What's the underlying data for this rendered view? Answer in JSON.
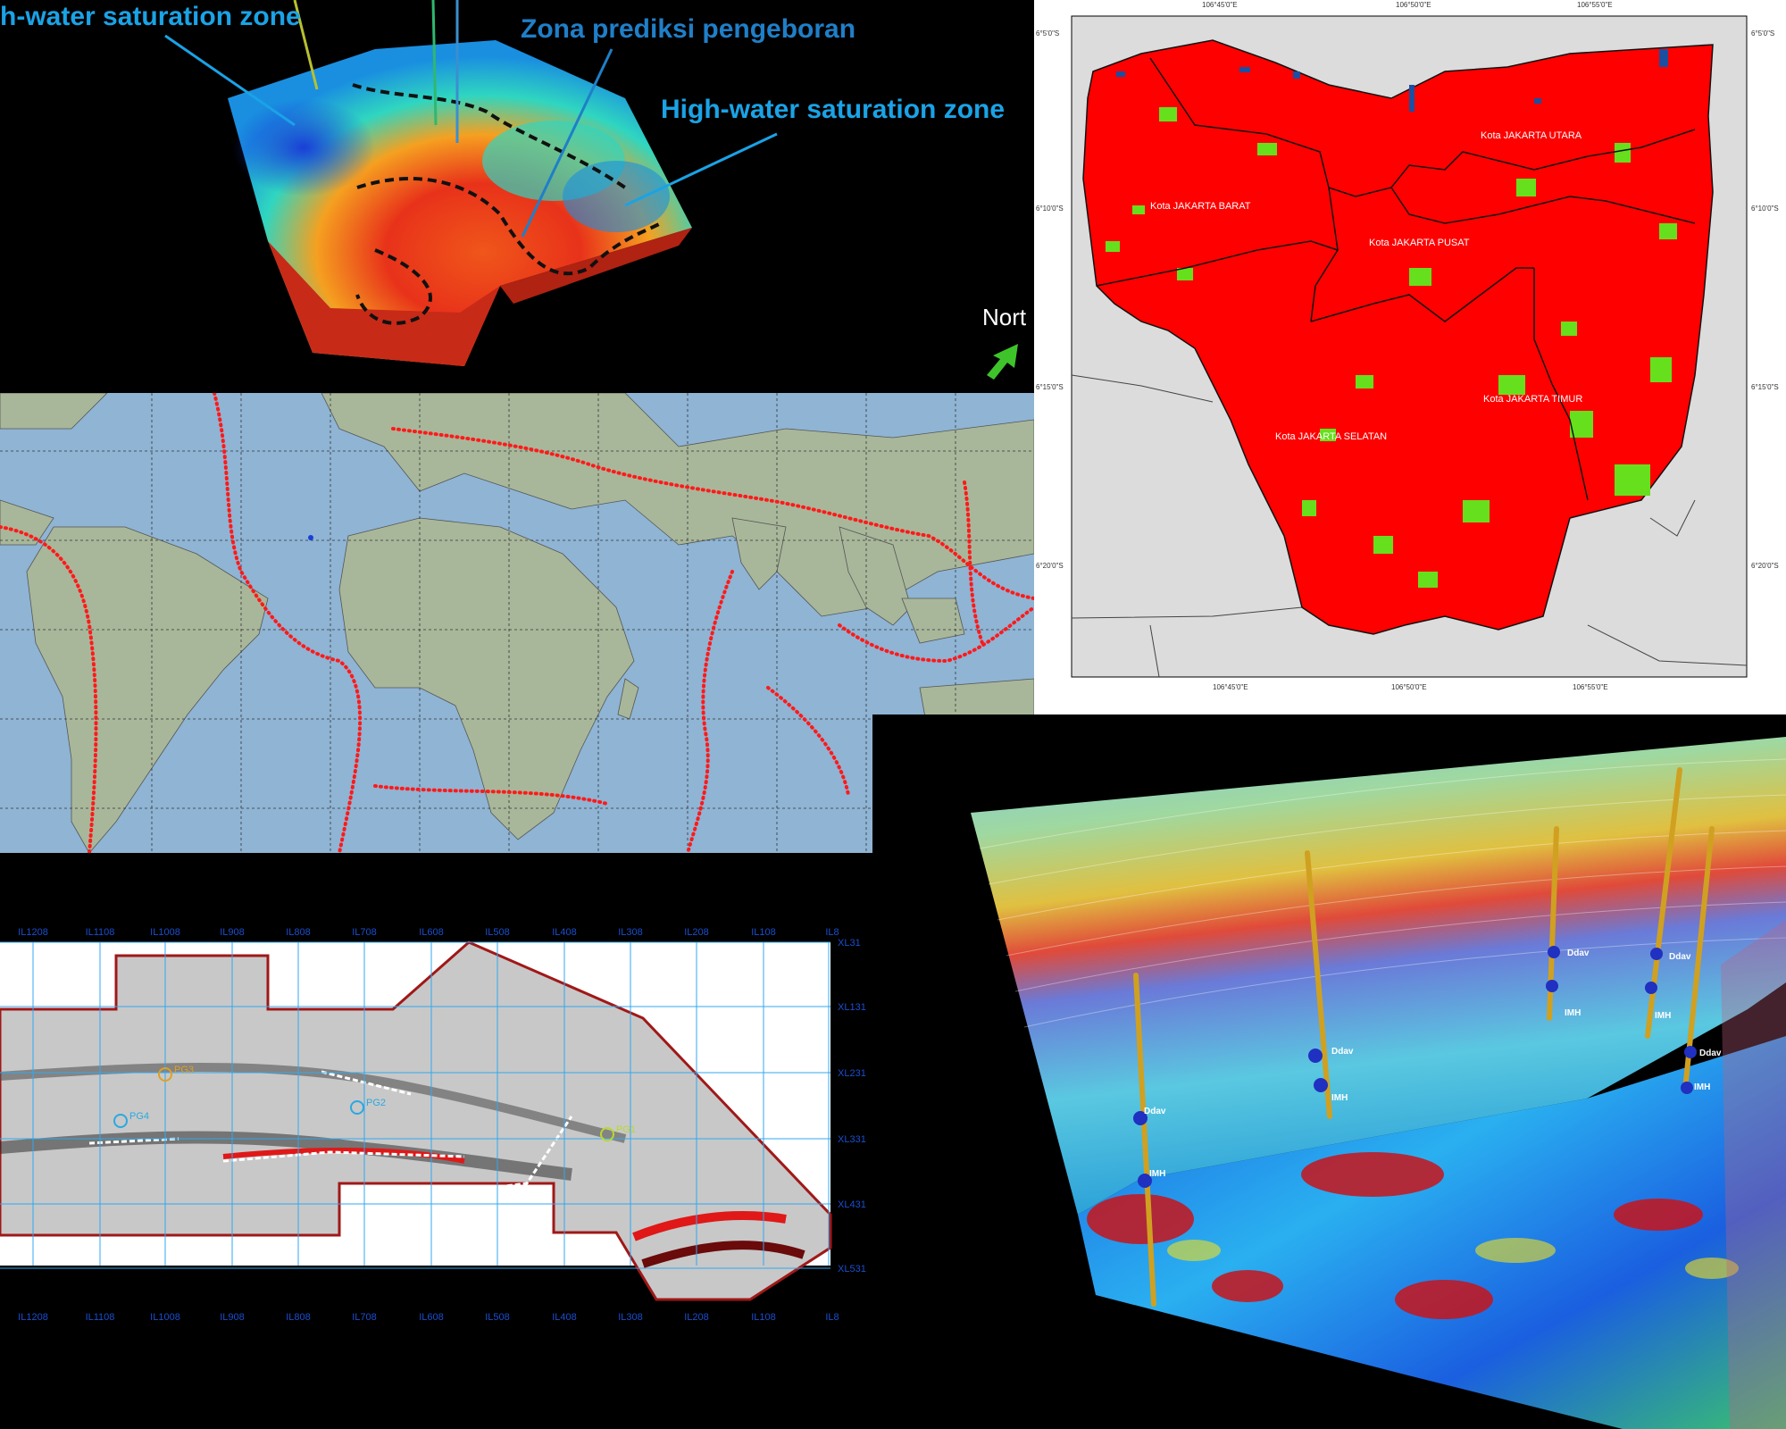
{
  "reservoir_panel": {
    "label_saturation_left": "h-water saturation zone",
    "label_drilling": "Zona prediksi pengeboran",
    "label_saturation_right": "High-water saturation zone",
    "north_label": "Nort",
    "colors": {
      "high_sat": "#1a3fd8",
      "mid": "#2fd6c0",
      "low": "#e8321a"
    }
  },
  "jakarta_map": {
    "top_coords": [
      "106°45'0\"E",
      "106°50'0\"E",
      "106°55'0\"E"
    ],
    "bottom_coords": [
      "106°45'0\"E",
      "106°50'0\"E",
      "106°55'0\"E"
    ],
    "left_coords": [
      "6°5'0\"S",
      "6°10'0\"S",
      "6°15'0\"S",
      "6°20'0\"S"
    ],
    "right_coords": [
      "6°5'0\"S",
      "6°10'0\"S",
      "6°15'0\"S",
      "6°20'0\"S"
    ],
    "districts": [
      "Kota JAKARTA UTARA",
      "Kota JAKARTA BARAT",
      "Kota JAKARTA PUSAT",
      "Kota JAKARTA TIMUR",
      "Kota JAKARTA SELATAN"
    ],
    "colors": {
      "built": "#ff0000",
      "vegetation": "#66e01c",
      "water": "#1c4fa0",
      "outside": "#dcdcdc"
    }
  },
  "world_map": {
    "colors": {
      "ocean": "#8fb4d4",
      "land": "#a8b79a",
      "quake": "#ff1a1a"
    }
  },
  "seismic_map": {
    "top_il": [
      "IL1208",
      "IL1108",
      "IL1008",
      "IL908",
      "IL808",
      "IL708",
      "IL608",
      "IL508",
      "IL408",
      "IL308",
      "IL208",
      "IL108",
      "IL8"
    ],
    "bottom_il": [
      "IL1208",
      "IL1108",
      "IL1008",
      "IL908",
      "IL808",
      "IL708",
      "IL608",
      "IL508",
      "IL408",
      "IL308",
      "IL208",
      "IL108",
      "IL8"
    ],
    "xl": [
      "XL31",
      "XL131",
      "XL231",
      "XL331",
      "XL431",
      "XL531"
    ],
    "wells": [
      {
        "name": "PG3",
        "color": "#e0a020"
      },
      {
        "name": "PG2",
        "color": "#2aa8e0"
      },
      {
        "name": "PG4",
        "color": "#2aa8e0"
      },
      {
        "name": "PG1",
        "color": "#b8d830"
      }
    ]
  },
  "seismic_3d": {
    "wells": [
      {
        "top": "Ddav",
        "base": "IMH"
      },
      {
        "top": "Ddav",
        "base": "IMH"
      },
      {
        "top": "Ddav",
        "base": "IMH"
      },
      {
        "top": "Ddav",
        "base": "IMH"
      },
      {
        "top": "Ddav",
        "base": "IMH"
      }
    ]
  }
}
